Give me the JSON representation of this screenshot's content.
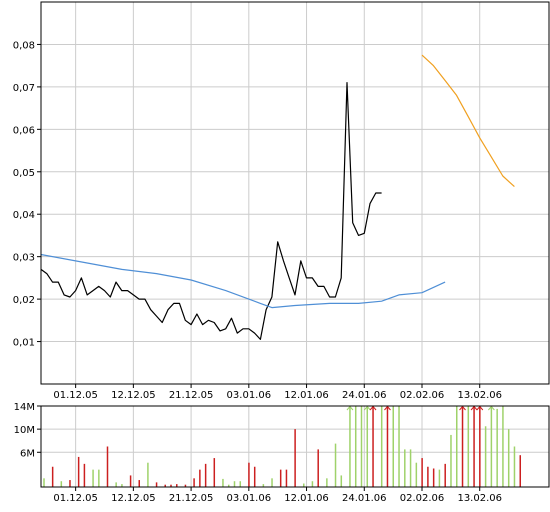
{
  "chart_data": [
    {
      "type": "line",
      "title": "",
      "xlabel": "",
      "ylabel": "",
      "ylim": [
        0.0,
        0.09
      ],
      "y_ticks": [
        "0,01",
        "0,02",
        "0,03",
        "0,04",
        "0,05",
        "0,06",
        "0,07",
        "0,08"
      ],
      "y_tick_values": [
        0.01,
        0.02,
        0.03,
        0.04,
        0.05,
        0.06,
        0.07,
        0.08
      ],
      "x_ticks": [
        "01.12.05",
        "12.12.05",
        "21.12.05",
        "03.01.06",
        "12.01.06",
        "24.01.06",
        "02.02.06",
        "13.02.06"
      ],
      "x_range": [
        0,
        88
      ],
      "x_tick_positions": [
        6,
        16,
        26,
        36,
        46,
        56,
        66,
        76
      ],
      "grid": true,
      "series": [
        {
          "color": "#000000",
          "points": [
            [
              0,
              0.027
            ],
            [
              1,
              0.026
            ],
            [
              2,
              0.024
            ],
            [
              3,
              0.024
            ],
            [
              4,
              0.021
            ],
            [
              5,
              0.0205
            ],
            [
              6,
              0.022
            ],
            [
              7,
              0.025
            ],
            [
              8,
              0.021
            ],
            [
              9,
              0.022
            ],
            [
              10,
              0.023
            ],
            [
              11,
              0.022
            ],
            [
              12,
              0.0205
            ],
            [
              13,
              0.024
            ],
            [
              14,
              0.022
            ],
            [
              15,
              0.022
            ],
            [
              16,
              0.021
            ],
            [
              17,
              0.02
            ],
            [
              18,
              0.02
            ],
            [
              19,
              0.0175
            ],
            [
              20,
              0.016
            ],
            [
              21,
              0.0145
            ],
            [
              22,
              0.0175
            ],
            [
              23,
              0.019
            ],
            [
              24,
              0.019
            ],
            [
              25,
              0.015
            ],
            [
              26,
              0.014
            ],
            [
              27,
              0.0165
            ],
            [
              28,
              0.014
            ],
            [
              29,
              0.015
            ],
            [
              30,
              0.0145
            ],
            [
              31,
              0.0125
            ],
            [
              32,
              0.013
            ],
            [
              33,
              0.0155
            ],
            [
              34,
              0.012
            ],
            [
              35,
              0.013
            ],
            [
              36,
              0.013
            ],
            [
              37,
              0.012
            ],
            [
              38,
              0.0105
            ],
            [
              39,
              0.0175
            ],
            [
              40,
              0.0205
            ],
            [
              41,
              0.0335
            ],
            [
              42,
              0.029
            ],
            [
              43,
              0.025
            ],
            [
              44,
              0.021
            ],
            [
              45,
              0.029
            ],
            [
              46,
              0.025
            ],
            [
              47,
              0.025
            ],
            [
              48,
              0.023
            ],
            [
              49,
              0.023
            ],
            [
              50,
              0.0205
            ],
            [
              51,
              0.0205
            ],
            [
              52,
              0.025
            ],
            [
              53,
              0.071
            ],
            [
              54,
              0.038
            ],
            [
              55,
              0.035
            ],
            [
              56,
              0.0355
            ],
            [
              57,
              0.0425
            ],
            [
              58,
              0.045
            ],
            [
              59,
              0.045
            ]
          ]
        },
        {
          "color": "#4f8fd6",
          "points": [
            [
              0,
              0.0305
            ],
            [
              8,
              0.0285
            ],
            [
              14,
              0.027
            ],
            [
              20,
              0.026
            ],
            [
              26,
              0.0245
            ],
            [
              32,
              0.022
            ],
            [
              38,
              0.019
            ],
            [
              40,
              0.018
            ],
            [
              44,
              0.0185
            ],
            [
              50,
              0.019
            ],
            [
              55,
              0.019
            ],
            [
              59,
              0.0195
            ],
            [
              62,
              0.021
            ],
            [
              66,
              0.0215
            ],
            [
              70,
              0.024
            ]
          ]
        },
        {
          "color": "#f0a020",
          "points": [
            [
              66,
              0.0775
            ],
            [
              68,
              0.075
            ],
            [
              70,
              0.0715
            ],
            [
              72,
              0.068
            ],
            [
              74,
              0.063
            ],
            [
              76,
              0.058
            ],
            [
              78,
              0.0535
            ],
            [
              80,
              0.049
            ],
            [
              82,
              0.0465
            ]
          ]
        }
      ]
    },
    {
      "type": "bar",
      "title": "",
      "xlabel": "",
      "ylabel": "",
      "ylim": [
        0,
        14
      ],
      "y_ticks": [
        "6M",
        "10M",
        "14M"
      ],
      "y_tick_values": [
        6,
        10,
        14
      ],
      "x_ticks": [
        "01.12.05",
        "12.12.05",
        "21.12.05",
        "03.01.06",
        "12.01.06",
        "24.01.06",
        "02.02.06",
        "13.02.06"
      ],
      "x_tick_positions": [
        6,
        16,
        26,
        36,
        46,
        56,
        66,
        76
      ],
      "x_range": [
        0,
        88
      ],
      "colors": {
        "up": "#9fd26a",
        "down": "#cc1f1f"
      },
      "bars": [
        {
          "x": 0,
          "v": 1.5,
          "c": "up"
        },
        {
          "x": 1.5,
          "v": 3.5,
          "c": "down"
        },
        {
          "x": 3,
          "v": 1,
          "c": "up"
        },
        {
          "x": 4.5,
          "v": 1.2,
          "c": "down"
        },
        {
          "x": 6,
          "v": 5.2,
          "c": "down"
        },
        {
          "x": 7,
          "v": 4,
          "c": "down"
        },
        {
          "x": 8.5,
          "v": 3,
          "c": "up"
        },
        {
          "x": 9.5,
          "v": 3,
          "c": "up"
        },
        {
          "x": 11,
          "v": 7,
          "c": "down"
        },
        {
          "x": 12.5,
          "v": 0.8,
          "c": "up"
        },
        {
          "x": 13.5,
          "v": 0.5,
          "c": "up"
        },
        {
          "x": 15,
          "v": 2,
          "c": "down"
        },
        {
          "x": 16.5,
          "v": 1.2,
          "c": "down"
        },
        {
          "x": 18,
          "v": 4.2,
          "c": "up"
        },
        {
          "x": 19.5,
          "v": 0.8,
          "c": "down"
        },
        {
          "x": 21,
          "v": 0.4,
          "c": "down"
        },
        {
          "x": 22,
          "v": 0.4,
          "c": "down"
        },
        {
          "x": 23,
          "v": 0.5,
          "c": "down"
        },
        {
          "x": 24.5,
          "v": 0.4,
          "c": "down"
        },
        {
          "x": 26,
          "v": 1.5,
          "c": "down"
        },
        {
          "x": 27,
          "v": 3,
          "c": "down"
        },
        {
          "x": 28,
          "v": 4,
          "c": "down"
        },
        {
          "x": 29.5,
          "v": 5,
          "c": "down"
        },
        {
          "x": 31,
          "v": 1.4,
          "c": "up"
        },
        {
          "x": 32,
          "v": 0.4,
          "c": "up"
        },
        {
          "x": 33,
          "v": 1,
          "c": "up"
        },
        {
          "x": 34,
          "v": 1,
          "c": "up"
        },
        {
          "x": 35.5,
          "v": 4.2,
          "c": "down"
        },
        {
          "x": 36.5,
          "v": 3.5,
          "c": "down"
        },
        {
          "x": 38,
          "v": 0.5,
          "c": "up"
        },
        {
          "x": 39.5,
          "v": 1.5,
          "c": "up"
        },
        {
          "x": 41,
          "v": 3,
          "c": "down"
        },
        {
          "x": 42,
          "v": 3,
          "c": "down"
        },
        {
          "x": 43.5,
          "v": 10,
          "c": "down"
        },
        {
          "x": 45,
          "v": 0.6,
          "c": "up"
        },
        {
          "x": 46.5,
          "v": 1,
          "c": "up"
        },
        {
          "x": 47.5,
          "v": 6.5,
          "c": "down"
        },
        {
          "x": 49,
          "v": 1.5,
          "c": "up"
        },
        {
          "x": 50.5,
          "v": 7.5,
          "c": "up"
        },
        {
          "x": 51.5,
          "v": 2,
          "c": "up"
        },
        {
          "x": 53,
          "v": 14,
          "c": "up",
          "over": true
        },
        {
          "x": 54,
          "v": 14,
          "c": "up"
        },
        {
          "x": 55,
          "v": 14,
          "c": "up"
        },
        {
          "x": 56,
          "v": 14,
          "c": "up",
          "over": true
        },
        {
          "x": 57,
          "v": 14,
          "c": "down",
          "over": true
        },
        {
          "x": 58.5,
          "v": 14,
          "c": "up"
        },
        {
          "x": 59.5,
          "v": 14,
          "c": "down",
          "over": true
        },
        {
          "x": 60.5,
          "v": 14,
          "c": "up"
        },
        {
          "x": 61.5,
          "v": 14,
          "c": "up"
        },
        {
          "x": 62.5,
          "v": 6.5,
          "c": "up"
        },
        {
          "x": 63.5,
          "v": 6.5,
          "c": "up"
        },
        {
          "x": 64.5,
          "v": 4.2,
          "c": "up"
        },
        {
          "x": 65.5,
          "v": 5,
          "c": "down"
        },
        {
          "x": 66.5,
          "v": 3.5,
          "c": "down"
        },
        {
          "x": 67.5,
          "v": 3.2,
          "c": "down"
        },
        {
          "x": 68.5,
          "v": 3,
          "c": "up"
        },
        {
          "x": 69.5,
          "v": 4,
          "c": "down"
        },
        {
          "x": 70.5,
          "v": 9,
          "c": "up"
        },
        {
          "x": 71.5,
          "v": 14,
          "c": "up"
        },
        {
          "x": 72.5,
          "v": 14,
          "c": "down",
          "over": true
        },
        {
          "x": 73.5,
          "v": 14,
          "c": "up"
        },
        {
          "x": 74.5,
          "v": 14,
          "c": "down",
          "over": true
        },
        {
          "x": 75.5,
          "v": 14,
          "c": "down",
          "over": true
        },
        {
          "x": 76.5,
          "v": 10.5,
          "c": "up"
        },
        {
          "x": 77.5,
          "v": 14,
          "c": "up",
          "over": true
        },
        {
          "x": 78.5,
          "v": 13.5,
          "c": "up"
        },
        {
          "x": 79.5,
          "v": 14,
          "c": "up"
        },
        {
          "x": 80.5,
          "v": 10,
          "c": "up"
        },
        {
          "x": 81.5,
          "v": 7,
          "c": "up"
        },
        {
          "x": 82.5,
          "v": 5.5,
          "c": "down"
        }
      ]
    }
  ]
}
